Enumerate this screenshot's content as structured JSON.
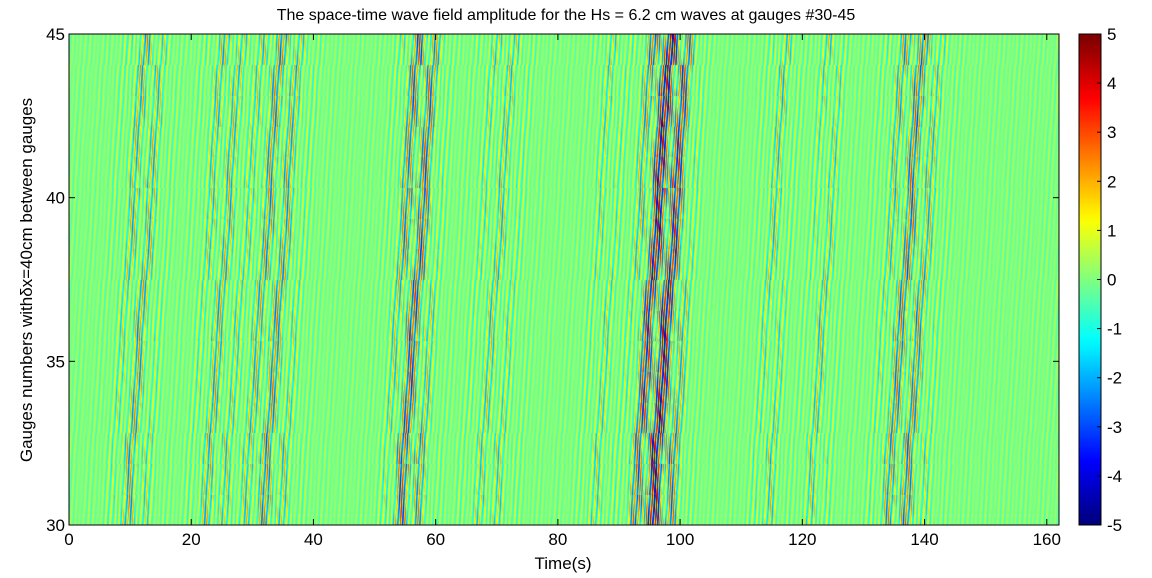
{
  "chart_data": {
    "type": "heatmap",
    "title": "The space-time wave field amplitude for the Hs = 6.2 cm waves at gauges #30-45",
    "xlabel": "Time(s)",
    "ylabel": "Gauges numbers withδx=40cm between gauges",
    "xlim": [
      0,
      162
    ],
    "ylim": [
      30,
      45
    ],
    "x_ticks": [
      "0",
      "20",
      "40",
      "60",
      "80",
      "100",
      "120",
      "140",
      "160"
    ],
    "y_ticks": [
      "30",
      "35",
      "40",
      "45"
    ],
    "colorbar": {
      "colormap": "jet",
      "range": [
        -5,
        5
      ],
      "ticks": [
        "-5",
        "-4",
        "-3",
        "-2",
        "-1",
        "0",
        "1",
        "2",
        "3",
        "4",
        "5"
      ]
    },
    "wave_groups": [
      {
        "t_start": 7,
        "t_end": 13,
        "strength": 0.45
      },
      {
        "t_start": 20,
        "t_end": 26,
        "strength": 0.4
      },
      {
        "t_start": 28,
        "t_end": 36,
        "strength": 0.5
      },
      {
        "t_start": 52,
        "t_end": 58,
        "strength": 0.65
      },
      {
        "t_start": 65,
        "t_end": 72,
        "strength": 0.35
      },
      {
        "t_start": 84,
        "t_end": 88,
        "strength": 0.3
      },
      {
        "t_start": 92,
        "t_end": 99,
        "strength": 0.95
      },
      {
        "t_start": 112,
        "t_end": 116,
        "strength": 0.35
      },
      {
        "t_start": 120,
        "t_end": 124,
        "strength": 0.35
      },
      {
        "t_start": 132,
        "t_end": 140,
        "strength": 0.55
      }
    ]
  }
}
